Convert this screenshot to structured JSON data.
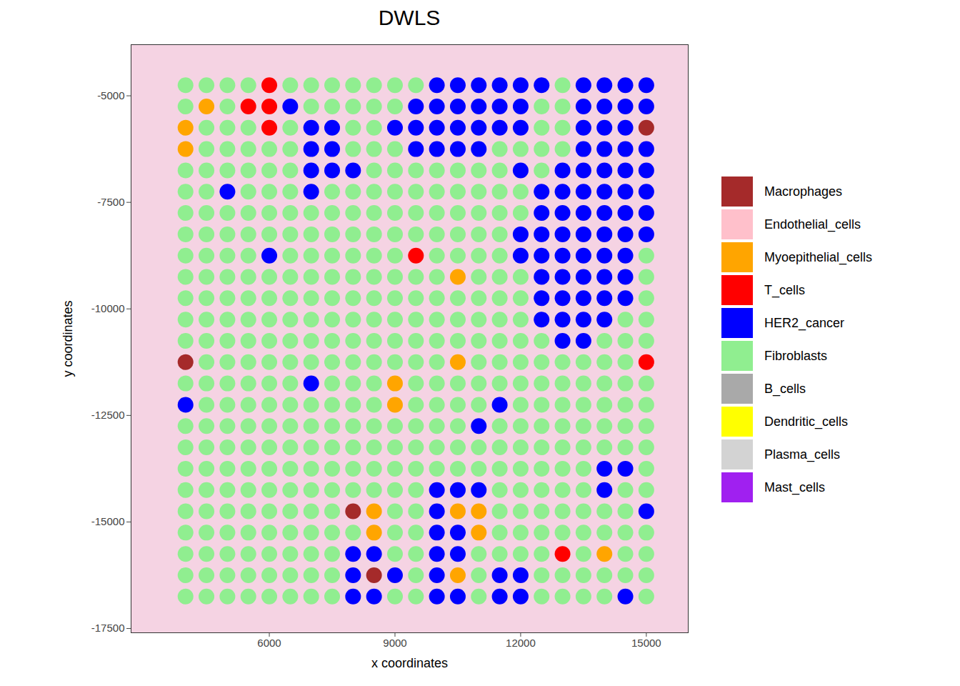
{
  "chart_data": {
    "type": "scatter",
    "title": "DWLS",
    "x_label": "x coordinates",
    "y_label": "y coordinates",
    "xlim": [
      2700,
      16000
    ],
    "ylim": [
      -17600,
      -3800
    ],
    "xticks": [
      6000,
      9000,
      12000,
      15000
    ],
    "yticks": [
      -5000,
      -7500,
      -10000,
      -12500,
      -15000,
      -17500
    ],
    "series": [
      {
        "name": "Macrophages",
        "color": "#a52a2a"
      },
      {
        "name": "Endothelial_cells",
        "color": "#ffc0cb"
      },
      {
        "name": "Myoepithelial_cells",
        "color": "#ffa500"
      },
      {
        "name": "T_cells",
        "color": "#ff0000"
      },
      {
        "name": "HER2_cancer",
        "color": "#0000ff"
      },
      {
        "name": "Fibroblasts",
        "color": "#90ee90"
      },
      {
        "name": "B_cells",
        "color": "#a9a9a9"
      },
      {
        "name": "Dendritic_cells",
        "color": "#ffff00"
      },
      {
        "name": "Plasma_cells",
        "color": "#d3d3d3"
      },
      {
        "name": "Mast_cells",
        "color": "#a020f0"
      }
    ],
    "x": [
      4000,
      4500,
      5000,
      5500,
      6000,
      6500,
      7000,
      7500,
      8000,
      8500,
      9000,
      9500,
      10000,
      10500,
      11000,
      11500,
      12000,
      12500,
      13000,
      13500,
      14000,
      14500,
      15000
    ],
    "y": [
      -4750,
      -5250,
      -5750,
      -6250,
      -6750,
      -7250,
      -7750,
      -8250,
      -8750,
      -9250,
      -9750,
      -10250,
      -10750,
      -11250,
      -11750,
      -12250,
      -12750,
      -13250,
      -13750,
      -14250,
      -14750,
      -15250,
      -15750,
      -16250,
      -16750
    ],
    "cells": [
      [
        5,
        5,
        5,
        5,
        3,
        5,
        5,
        5,
        5,
        5,
        5,
        5,
        4,
        4,
        4,
        4,
        4,
        4,
        5,
        4,
        4,
        4,
        4
      ],
      [
        5,
        2,
        5,
        3,
        3,
        4,
        5,
        5,
        5,
        5,
        5,
        4,
        4,
        4,
        4,
        4,
        4,
        5,
        5,
        4,
        4,
        4,
        4
      ],
      [
        2,
        5,
        5,
        5,
        3,
        5,
        4,
        4,
        5,
        5,
        4,
        4,
        4,
        4,
        4,
        4,
        4,
        5,
        5,
        4,
        4,
        4,
        0
      ],
      [
        2,
        5,
        5,
        5,
        5,
        5,
        4,
        4,
        5,
        5,
        5,
        4,
        4,
        4,
        4,
        5,
        5,
        5,
        5,
        4,
        4,
        4,
        4
      ],
      [
        5,
        5,
        5,
        5,
        5,
        5,
        4,
        4,
        4,
        5,
        5,
        5,
        5,
        5,
        5,
        5,
        4,
        5,
        4,
        4,
        4,
        4,
        4
      ],
      [
        5,
        5,
        4,
        5,
        5,
        5,
        4,
        5,
        5,
        5,
        5,
        5,
        5,
        5,
        5,
        5,
        5,
        4,
        4,
        4,
        4,
        4,
        4
      ],
      [
        5,
        5,
        5,
        5,
        5,
        5,
        5,
        5,
        5,
        5,
        5,
        5,
        5,
        5,
        5,
        5,
        5,
        4,
        4,
        4,
        4,
        4,
        4
      ],
      [
        5,
        5,
        5,
        5,
        5,
        5,
        5,
        5,
        5,
        5,
        5,
        5,
        5,
        5,
        5,
        5,
        4,
        4,
        4,
        4,
        4,
        4,
        4
      ],
      [
        5,
        5,
        5,
        5,
        4,
        5,
        5,
        5,
        5,
        5,
        5,
        3,
        5,
        5,
        5,
        5,
        4,
        4,
        4,
        4,
        4,
        4,
        5
      ],
      [
        5,
        5,
        5,
        5,
        5,
        5,
        5,
        5,
        5,
        5,
        5,
        5,
        5,
        2,
        5,
        5,
        5,
        4,
        4,
        4,
        4,
        4,
        5
      ],
      [
        5,
        5,
        5,
        5,
        5,
        5,
        5,
        5,
        5,
        5,
        5,
        5,
        5,
        5,
        5,
        5,
        5,
        4,
        4,
        4,
        4,
        4,
        5
      ],
      [
        5,
        5,
        5,
        5,
        5,
        5,
        5,
        5,
        5,
        5,
        5,
        5,
        5,
        5,
        5,
        5,
        5,
        4,
        4,
        4,
        4,
        5,
        5
      ],
      [
        5,
        5,
        5,
        5,
        5,
        5,
        5,
        5,
        5,
        5,
        5,
        5,
        5,
        5,
        5,
        5,
        5,
        5,
        4,
        4,
        5,
        5,
        5
      ],
      [
        0,
        5,
        5,
        5,
        5,
        5,
        5,
        5,
        5,
        5,
        5,
        5,
        5,
        2,
        5,
        5,
        5,
        5,
        5,
        5,
        5,
        5,
        3
      ],
      [
        5,
        5,
        5,
        5,
        5,
        5,
        4,
        5,
        5,
        5,
        2,
        5,
        5,
        5,
        5,
        5,
        5,
        5,
        5,
        5,
        5,
        5,
        5
      ],
      [
        4,
        5,
        5,
        5,
        5,
        5,
        5,
        5,
        5,
        5,
        2,
        5,
        5,
        5,
        5,
        4,
        5,
        5,
        5,
        5,
        5,
        5,
        5
      ],
      [
        5,
        5,
        5,
        5,
        5,
        5,
        5,
        5,
        5,
        5,
        5,
        5,
        5,
        5,
        4,
        5,
        5,
        5,
        5,
        5,
        5,
        5,
        5
      ],
      [
        5,
        5,
        5,
        5,
        5,
        5,
        5,
        5,
        5,
        5,
        5,
        5,
        5,
        5,
        5,
        5,
        5,
        5,
        5,
        5,
        5,
        5,
        5
      ],
      [
        5,
        5,
        5,
        5,
        5,
        5,
        5,
        5,
        5,
        5,
        5,
        5,
        5,
        5,
        5,
        5,
        5,
        5,
        5,
        5,
        4,
        4,
        5
      ],
      [
        5,
        5,
        5,
        5,
        5,
        5,
        5,
        5,
        5,
        5,
        5,
        5,
        4,
        4,
        4,
        5,
        5,
        5,
        5,
        5,
        4,
        5,
        5
      ],
      [
        5,
        5,
        5,
        5,
        5,
        5,
        5,
        5,
        0,
        2,
        5,
        5,
        4,
        2,
        2,
        5,
        5,
        5,
        5,
        5,
        5,
        5,
        4
      ],
      [
        5,
        5,
        5,
        5,
        5,
        5,
        5,
        5,
        5,
        2,
        5,
        5,
        4,
        4,
        2,
        5,
        5,
        5,
        5,
        5,
        5,
        5,
        5
      ],
      [
        5,
        5,
        5,
        5,
        5,
        5,
        5,
        5,
        4,
        4,
        5,
        5,
        4,
        4,
        5,
        5,
        5,
        5,
        3,
        5,
        2,
        5,
        5
      ],
      [
        5,
        5,
        5,
        5,
        5,
        5,
        5,
        5,
        4,
        0,
        4,
        5,
        4,
        2,
        5,
        4,
        4,
        5,
        5,
        5,
        5,
        5,
        5
      ],
      [
        5,
        5,
        5,
        5,
        5,
        5,
        5,
        5,
        4,
        4,
        5,
        5,
        4,
        4,
        5,
        4,
        4,
        5,
        5,
        5,
        5,
        4,
        5
      ]
    ]
  }
}
